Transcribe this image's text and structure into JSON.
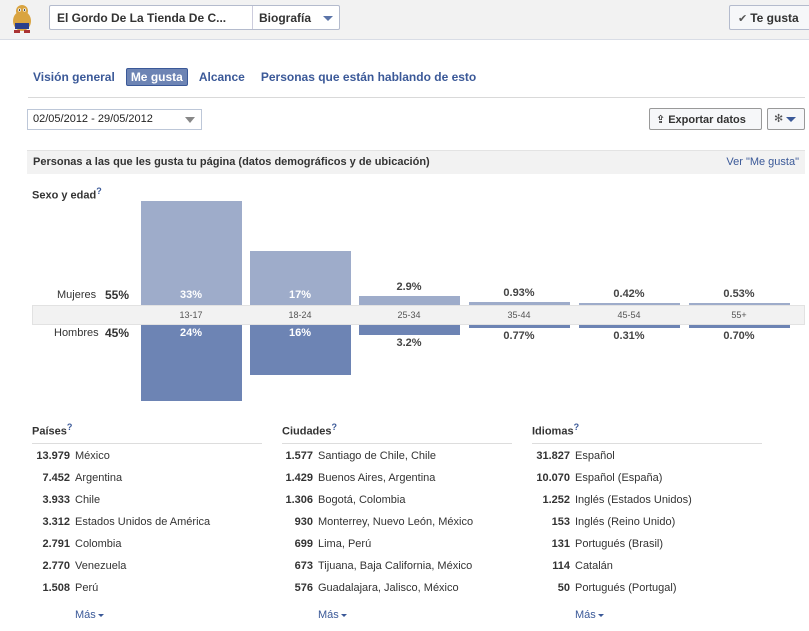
{
  "header": {
    "page_name": "El Gordo De La Tienda De C...",
    "view_label": "Biografía",
    "like_button": "Te gusta",
    "accent": "#3b5998"
  },
  "tabs": [
    {
      "label": "Visión general",
      "active": false
    },
    {
      "label": "Me gusta",
      "active": true
    },
    {
      "label": "Alcance",
      "active": false
    },
    {
      "label": "Personas que están hablando de esto",
      "active": false
    }
  ],
  "toolbar": {
    "date_range": "02/05/2012 - 29/05/2012",
    "export_label": "Exportar datos",
    "settings_icon": "gear-icon"
  },
  "section": {
    "title": "Personas a las que les gusta tu página (datos demográficos y de ubicación)",
    "view_link": "Ver \"Me gusta\""
  },
  "demographics": {
    "title": "Sexo y edad",
    "help": "?",
    "women_label": "Mujeres",
    "women_total": "55%",
    "men_label": "Hombres",
    "men_total": "45%",
    "women_color": "#9eacca",
    "men_color": "#6d84b4"
  },
  "chart_data": {
    "type": "bar",
    "categories": [
      "13-17",
      "18-24",
      "25-34",
      "35-44",
      "45-54",
      "55+"
    ],
    "series": [
      {
        "name": "Mujeres",
        "values": [
          33,
          17,
          2.9,
          0.93,
          0.42,
          0.53
        ],
        "labels": [
          "33%",
          "17%",
          "2.9%",
          "0.93%",
          "0.42%",
          "0.53%"
        ]
      },
      {
        "name": "Hombres",
        "values": [
          24,
          16,
          3.2,
          0.77,
          0.31,
          0.7
        ],
        "labels": [
          "24%",
          "16%",
          "3.2%",
          "0.77%",
          "0.31%",
          "0.70%"
        ]
      }
    ],
    "ylabel": "",
    "xlabel": ""
  },
  "countries": {
    "title": "Países",
    "help": "?",
    "items": [
      {
        "count": "13.979",
        "name": "México"
      },
      {
        "count": "7.452",
        "name": "Argentina"
      },
      {
        "count": "3.933",
        "name": "Chile"
      },
      {
        "count": "3.312",
        "name": "Estados Unidos de América"
      },
      {
        "count": "2.791",
        "name": "Colombia"
      },
      {
        "count": "2.770",
        "name": "Venezuela"
      },
      {
        "count": "1.508",
        "name": "Perú"
      }
    ],
    "more": "Más"
  },
  "cities": {
    "title": "Ciudades",
    "help": "?",
    "items": [
      {
        "count": "1.577",
        "name": "Santiago de Chile, Chile"
      },
      {
        "count": "1.429",
        "name": "Buenos Aires, Argentina"
      },
      {
        "count": "1.306",
        "name": "Bogotá, Colombia"
      },
      {
        "count": "930",
        "name": "Monterrey, Nuevo León, México"
      },
      {
        "count": "699",
        "name": "Lima, Perú"
      },
      {
        "count": "673",
        "name": "Tijuana, Baja California, México"
      },
      {
        "count": "576",
        "name": "Guadalajara, Jalisco, México"
      }
    ],
    "more": "Más"
  },
  "languages": {
    "title": "Idiomas",
    "help": "?",
    "items": [
      {
        "count": "31.827",
        "name": "Español"
      },
      {
        "count": "10.070",
        "name": "Español (España)"
      },
      {
        "count": "1.252",
        "name": "Inglés (Estados Unidos)"
      },
      {
        "count": "153",
        "name": "Inglés (Reino Unido)"
      },
      {
        "count": "131",
        "name": "Portugués (Brasil)"
      },
      {
        "count": "114",
        "name": "Catalán"
      },
      {
        "count": "50",
        "name": "Portugués (Portugal)"
      }
    ],
    "more": "Más"
  }
}
